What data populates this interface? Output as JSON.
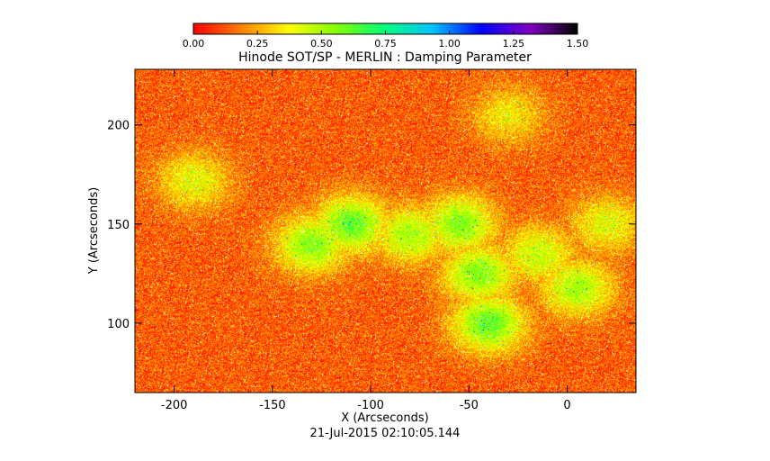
{
  "chart_data": {
    "type": "heatmap",
    "title": "Hinode SOT/SP - MERLIN : Damping Parameter",
    "xlabel": "X (Arcseconds)",
    "ylabel": "Y (Arcseconds)",
    "timestamp": "21-Jul-2015 02:10:05.144",
    "xlim": [
      -220,
      35
    ],
    "ylim": [
      65,
      228
    ],
    "x_ticks": [
      {
        "label": "-200",
        "value": -200
      },
      {
        "label": "-150",
        "value": -150
      },
      {
        "label": "-100",
        "value": -100
      },
      {
        "label": "-50",
        "value": -50
      },
      {
        "label": "0",
        "value": 0
      }
    ],
    "y_ticks": [
      {
        "label": "100",
        "value": 100
      },
      {
        "label": "150",
        "value": 150
      },
      {
        "label": "200",
        "value": 200
      }
    ],
    "colorbar": {
      "range": [
        0,
        1.5
      ],
      "ticks": [
        {
          "label": "0.00",
          "value": 0.0
        },
        {
          "label": "0.25",
          "value": 0.25
        },
        {
          "label": "0.50",
          "value": 0.5
        },
        {
          "label": "0.75",
          "value": 0.75
        },
        {
          "label": "1.00",
          "value": 1.0
        },
        {
          "label": "1.25",
          "value": 1.25
        },
        {
          "label": "1.50",
          "value": 1.5
        }
      ],
      "colors": [
        "#ff0000",
        "#ff8000",
        "#ffff00",
        "#80ff00",
        "#00ff80",
        "#00c0ff",
        "#0000ff",
        "#8000c0",
        "#000000"
      ]
    },
    "field": {
      "background_value": 0.12,
      "enhanced_regions": [
        {
          "x": -130,
          "y": 140,
          "value": 0.55
        },
        {
          "x": -110,
          "y": 150,
          "value": 0.6
        },
        {
          "x": -80,
          "y": 145,
          "value": 0.5
        },
        {
          "x": -55,
          "y": 150,
          "value": 0.55
        },
        {
          "x": -45,
          "y": 125,
          "value": 0.55
        },
        {
          "x": -40,
          "y": 100,
          "value": 0.6
        },
        {
          "x": -15,
          "y": 135,
          "value": 0.45
        },
        {
          "x": 5,
          "y": 118,
          "value": 0.5
        },
        {
          "x": 20,
          "y": 150,
          "value": 0.4
        },
        {
          "x": -190,
          "y": 172,
          "value": 0.4
        },
        {
          "x": -30,
          "y": 205,
          "value": 0.35
        }
      ]
    }
  }
}
